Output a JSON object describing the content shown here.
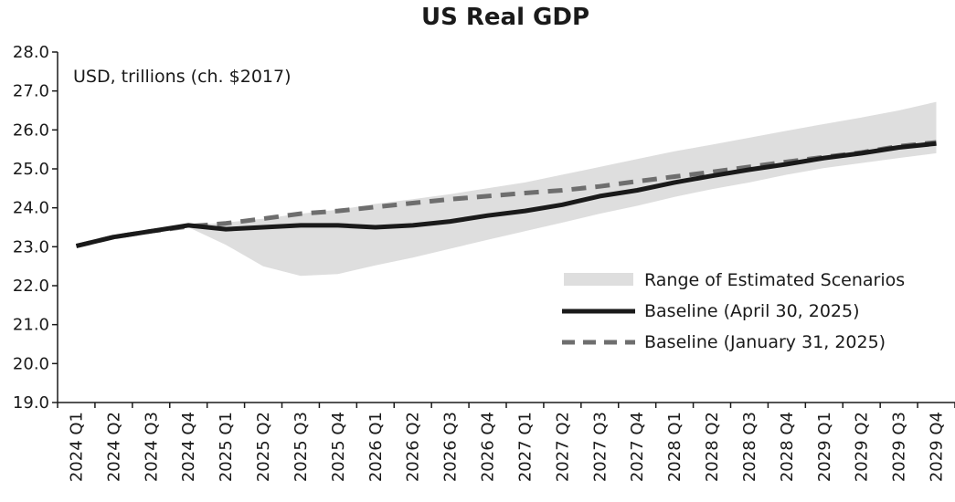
{
  "chart_data": {
    "type": "line",
    "title": "US Real GDP",
    "ylabel": "USD, trillions (ch. $2017)",
    "ylim": [
      19.0,
      28.0
    ],
    "yticks": [
      "28.0",
      "27.0",
      "26.0",
      "25.0",
      "24.0",
      "23.0",
      "22.0",
      "21.0",
      "20.0",
      "19.0"
    ],
    "categories": [
      "2024 Q1",
      "2024 Q2",
      "2024 Q3",
      "2024 Q4",
      "2025 Q1",
      "2025 Q2",
      "2025 Q3",
      "2025 Q4",
      "2026 Q1",
      "2026 Q2",
      "2026 Q3",
      "2026 Q4",
      "2027 Q1",
      "2027 Q2",
      "2027 Q3",
      "2027 Q4",
      "2028 Q1",
      "2028 Q2",
      "2028 Q3",
      "2028 Q4",
      "2029 Q1",
      "2029 Q2",
      "2029 Q3",
      "2029 Q4"
    ],
    "range": {
      "name": "Range of Estimated Scenarios",
      "color": "#dedede",
      "upper": [
        null,
        null,
        null,
        23.55,
        23.62,
        23.72,
        23.85,
        23.95,
        24.1,
        24.22,
        24.35,
        24.5,
        24.65,
        24.85,
        25.05,
        25.25,
        25.45,
        25.62,
        25.8,
        25.98,
        26.15,
        26.32,
        26.5,
        26.72
      ],
      "lower": [
        null,
        null,
        null,
        23.5,
        23.05,
        22.5,
        22.25,
        22.3,
        22.52,
        22.72,
        22.95,
        23.18,
        23.4,
        23.62,
        23.85,
        24.05,
        24.28,
        24.48,
        24.65,
        24.85,
        25.02,
        25.15,
        25.28,
        25.4
      ]
    },
    "series": [
      {
        "name": "Baseline (April 30, 2025)",
        "style": "solid",
        "color": "#1a1a1a",
        "values": [
          23.02,
          23.25,
          23.4,
          23.55,
          23.45,
          23.5,
          23.55,
          23.55,
          23.5,
          23.55,
          23.65,
          23.8,
          23.92,
          24.08,
          24.3,
          24.45,
          24.65,
          24.82,
          24.98,
          25.12,
          25.28,
          25.4,
          25.55,
          25.65
        ]
      },
      {
        "name": "Baseline (January 31, 2025)",
        "style": "dashed",
        "color": "#6e6e6e",
        "values": [
          23.02,
          23.25,
          23.4,
          23.52,
          23.6,
          23.72,
          23.85,
          23.92,
          24.02,
          24.12,
          24.22,
          24.3,
          24.38,
          24.45,
          24.55,
          24.68,
          24.8,
          24.92,
          25.05,
          25.18,
          25.3,
          25.42,
          25.58,
          25.68
        ]
      }
    ],
    "grid": false,
    "legend_position": "lower-right"
  }
}
